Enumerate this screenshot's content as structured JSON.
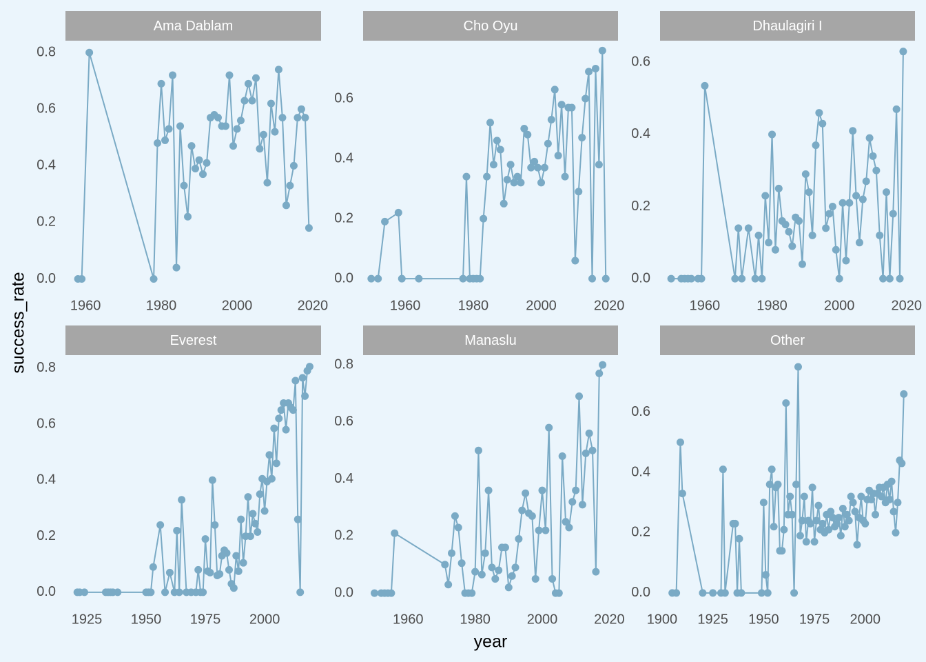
{
  "chart_data": {
    "type": "line",
    "x_label": "year",
    "y_label": "success_rate",
    "color": "#7aaac5",
    "strip_color": "#a6a6a6",
    "background": "#ebf5fc",
    "grid": false,
    "facets": [
      {
        "title": "Ama Dablam",
        "xlim": [
          1954.7,
          2022.2
        ],
        "ylim": [
          -0.05,
          0.842
        ],
        "xticks": [
          1960,
          1980,
          2000,
          2020
        ],
        "yticks": [
          {
            "value": 0,
            "label": "0.0"
          },
          {
            "value": 0.2,
            "label": "0.2"
          },
          {
            "value": 0.4,
            "label": "0.4"
          },
          {
            "value": 0.6,
            "label": "0.6"
          },
          {
            "value": 0.8,
            "label": "0.8"
          }
        ],
        "x": [
          1958,
          1959,
          1961,
          1978,
          1979,
          1980,
          1981,
          1982,
          1983,
          1984,
          1985,
          1986,
          1987,
          1988,
          1989,
          1990,
          1991,
          1992,
          1993,
          1994,
          1995,
          1996,
          1997,
          1998,
          1999,
          2000,
          2001,
          2002,
          2003,
          2004,
          2005,
          2006,
          2007,
          2008,
          2009,
          2010,
          2011,
          2012,
          2013,
          2014,
          2015,
          2016,
          2017,
          2018,
          2019
        ],
        "values": [
          0,
          0,
          0.8,
          0,
          0.48,
          0.69,
          0.49,
          0.53,
          0.72,
          0.04,
          0.54,
          0.33,
          0.22,
          0.47,
          0.39,
          0.42,
          0.37,
          0.41,
          0.57,
          0.58,
          0.57,
          0.54,
          0.54,
          0.72,
          0.47,
          0.53,
          0.56,
          0.63,
          0.69,
          0.63,
          0.71,
          0.46,
          0.51,
          0.34,
          0.62,
          0.52,
          0.74,
          0.57,
          0.26,
          0.33,
          0.4,
          0.57,
          0.6,
          0.57,
          0.18
        ]
      },
      {
        "title": "Cho Oyu",
        "xlim": [
          1947.6,
          2022.6
        ],
        "ylim": [
          -0.048,
          0.793
        ],
        "xticks": [
          1960,
          1980,
          2000,
          2020
        ],
        "yticks": [
          {
            "value": 0,
            "label": "0.0"
          },
          {
            "value": 0.2,
            "label": "0.2"
          },
          {
            "value": 0.4,
            "label": "0.4"
          },
          {
            "value": 0.6,
            "label": "0.6"
          }
        ],
        "x": [
          1950,
          1952,
          1954,
          1958,
          1959,
          1964,
          1977,
          1978,
          1979,
          1980,
          1981,
          1982,
          1983,
          1984,
          1985,
          1986,
          1987,
          1988,
          1989,
          1990,
          1991,
          1992,
          1993,
          1994,
          1995,
          1996,
          1997,
          1998,
          1999,
          2000,
          2001,
          2002,
          2003,
          2004,
          2005,
          2006,
          2007,
          2008,
          2009,
          2010,
          2011,
          2012,
          2013,
          2014,
          2015,
          2016,
          2017,
          2018,
          2019
        ],
        "values": [
          0,
          0,
          0.19,
          0.22,
          0,
          0,
          0,
          0.34,
          0,
          0,
          0,
          0,
          0.2,
          0.34,
          0.52,
          0.38,
          0.46,
          0.43,
          0.25,
          0.33,
          0.38,
          0.32,
          0.34,
          0.32,
          0.5,
          0.48,
          0.37,
          0.39,
          0.37,
          0.32,
          0.37,
          0.45,
          0.53,
          0.63,
          0.41,
          0.58,
          0.34,
          0.57,
          0.57,
          0.06,
          0.29,
          0.47,
          0.6,
          0.69,
          0,
          0.7,
          0.38,
          0.76,
          0
        ]
      },
      {
        "title": "Dhaulagiri I",
        "xlim": [
          1946.7,
          2022.5
        ],
        "ylim": [
          -0.04,
          0.66
        ],
        "xticks": [
          1960,
          1980,
          2000,
          2020
        ],
        "yticks": [
          {
            "value": 0,
            "label": "0.0"
          },
          {
            "value": 0.2,
            "label": "0.2"
          },
          {
            "value": 0.4,
            "label": "0.4"
          },
          {
            "value": 0.6,
            "label": "0.6"
          }
        ],
        "x": [
          1950,
          1953,
          1954,
          1955,
          1956,
          1958,
          1959,
          1960,
          1969,
          1970,
          1971,
          1973,
          1975,
          1976,
          1977,
          1978,
          1979,
          1980,
          1981,
          1982,
          1983,
          1984,
          1985,
          1986,
          1987,
          1988,
          1989,
          1990,
          1991,
          1992,
          1993,
          1994,
          1995,
          1996,
          1997,
          1998,
          1999,
          2000,
          2001,
          2002,
          2003,
          2004,
          2005,
          2006,
          2007,
          2008,
          2009,
          2010,
          2011,
          2012,
          2013,
          2014,
          2015,
          2016,
          2017,
          2018,
          2019
        ],
        "values": [
          0,
          0,
          0,
          0,
          0,
          0,
          0,
          0.535,
          0,
          0.14,
          0,
          0.14,
          0,
          0.12,
          0,
          0.23,
          0.1,
          0.4,
          0.08,
          0.25,
          0.16,
          0.15,
          0.13,
          0.09,
          0.17,
          0.16,
          0.04,
          0.29,
          0.24,
          0.12,
          0.37,
          0.46,
          0.43,
          0.14,
          0.18,
          0.2,
          0.08,
          0,
          0.21,
          0.05,
          0.21,
          0.41,
          0.23,
          0.1,
          0.22,
          0.27,
          0.39,
          0.34,
          0.3,
          0.12,
          0,
          0.24,
          0,
          0.18,
          0.47,
          0,
          0.63
        ]
      },
      {
        "title": "Everest",
        "xlim": [
          1916.0,
          2023.8
        ],
        "ylim": [
          -0.052,
          0.846
        ],
        "xticks": [
          1925,
          1950,
          1975,
          2000
        ],
        "yticks": [
          {
            "value": 0,
            "label": "0.0"
          },
          {
            "value": 0.2,
            "label": "0.2"
          },
          {
            "value": 0.4,
            "label": "0.4"
          },
          {
            "value": 0.6,
            "label": "0.6"
          },
          {
            "value": 0.8,
            "label": "0.8"
          }
        ],
        "x": [
          1921,
          1922,
          1924,
          1933,
          1934,
          1935,
          1936,
          1938,
          1950,
          1951,
          1952,
          1953,
          1956,
          1958,
          1960,
          1962,
          1963,
          1964,
          1965,
          1967,
          1969,
          1971,
          1972,
          1973,
          1974,
          1975,
          1976,
          1977,
          1978,
          1979,
          1980,
          1981,
          1982,
          1983,
          1984,
          1985,
          1986,
          1987,
          1988,
          1989,
          1990,
          1991,
          1992,
          1993,
          1994,
          1995,
          1996,
          1997,
          1998,
          1999,
          2000,
          2001,
          2002,
          2003,
          2004,
          2005,
          2006,
          2007,
          2008,
          2009,
          2010,
          2011,
          2012,
          2013,
          2014,
          2015,
          2016,
          2017,
          2018,
          2019
        ],
        "values": [
          0,
          0,
          0,
          0,
          0,
          0,
          0,
          0,
          0,
          0,
          0,
          0.09,
          0.24,
          0,
          0.07,
          0,
          0.22,
          0,
          0.33,
          0,
          0,
          0,
          0.08,
          0,
          0,
          0.19,
          0.075,
          0.07,
          0.4,
          0.24,
          0.06,
          0.065,
          0.13,
          0.15,
          0.14,
          0.08,
          0.03,
          0.015,
          0.13,
          0.075,
          0.26,
          0.105,
          0.2,
          0.34,
          0.2,
          0.28,
          0.245,
          0.215,
          0.35,
          0.405,
          0.29,
          0.395,
          0.49,
          0.405,
          0.585,
          0.46,
          0.62,
          0.65,
          0.675,
          0.58,
          0.675,
          0.66,
          0.65,
          0.755,
          0.26,
          0,
          0.765,
          0.7,
          0.79,
          0.805
        ]
      },
      {
        "title": "Manaslu",
        "xlim": [
          1946.6,
          2022.6
        ],
        "ylim": [
          -0.048,
          0.834
        ],
        "xticks": [
          1960,
          1980,
          2000,
          2020
        ],
        "yticks": [
          {
            "value": 0,
            "label": "0.0"
          },
          {
            "value": 0.2,
            "label": "0.2"
          },
          {
            "value": 0.4,
            "label": "0.4"
          },
          {
            "value": 0.6,
            "label": "0.6"
          },
          {
            "value": 0.8,
            "label": "0.8"
          }
        ],
        "x": [
          1950,
          1952,
          1953,
          1954,
          1955,
          1956,
          1971,
          1972,
          1973,
          1974,
          1975,
          1976,
          1977,
          1978,
          1979,
          1980,
          1981,
          1982,
          1983,
          1984,
          1985,
          1986,
          1987,
          1988,
          1989,
          1990,
          1991,
          1992,
          1993,
          1994,
          1995,
          1996,
          1997,
          1998,
          1999,
          2000,
          2001,
          2002,
          2003,
          2004,
          2005,
          2006,
          2007,
          2008,
          2009,
          2010,
          2011,
          2012,
          2013,
          2014,
          2015,
          2016,
          2017,
          2018
        ],
        "values": [
          0,
          0,
          0,
          0,
          0,
          0.21,
          0.1,
          0.03,
          0.14,
          0.27,
          0.23,
          0.105,
          0,
          0,
          0,
          0.075,
          0.5,
          0.065,
          0.14,
          0.36,
          0.09,
          0.05,
          0.08,
          0.16,
          0.16,
          0.02,
          0.06,
          0.09,
          0.19,
          0.29,
          0.35,
          0.28,
          0.27,
          0.05,
          0.22,
          0.36,
          0.22,
          0.58,
          0.05,
          0,
          0,
          0.48,
          0.25,
          0.23,
          0.32,
          0.36,
          0.69,
          0.31,
          0.49,
          0.56,
          0.5,
          0.075,
          0.77,
          0.8
        ]
      },
      {
        "title": "Other",
        "xlim": [
          1899.0,
          2024.5
        ],
        "ylim": [
          -0.046,
          0.789
        ],
        "xticks": [
          1900,
          1925,
          1950,
          1975,
          2000
        ],
        "yticks": [
          {
            "value": 0,
            "label": "0.0"
          },
          {
            "value": 0.2,
            "label": "0.2"
          },
          {
            "value": 0.4,
            "label": "0.4"
          },
          {
            "value": 0.6,
            "label": "0.6"
          }
        ],
        "x": [
          1905,
          1907,
          1909,
          1910,
          1920,
          1925,
          1929,
          1930,
          1931,
          1935,
          1936,
          1937,
          1938,
          1939,
          1949,
          1950,
          1951,
          1952,
          1953,
          1954,
          1955,
          1956,
          1957,
          1958,
          1959,
          1960,
          1961,
          1962,
          1963,
          1964,
          1965,
          1966,
          1967,
          1968,
          1969,
          1970,
          1971,
          1972,
          1973,
          1974,
          1975,
          1976,
          1977,
          1978,
          1979,
          1980,
          1981,
          1982,
          1983,
          1984,
          1985,
          1986,
          1987,
          1988,
          1989,
          1990,
          1991,
          1992,
          1993,
          1994,
          1995,
          1996,
          1997,
          1998,
          1999,
          2000,
          2001,
          2002,
          2003,
          2004,
          2005,
          2006,
          2007,
          2008,
          2009,
          2010,
          2011,
          2012,
          2013,
          2014,
          2015,
          2016,
          2017,
          2018,
          2019
        ],
        "values": [
          0,
          0,
          0.5,
          0.33,
          0,
          0,
          0,
          0.41,
          0,
          0.23,
          0.23,
          0,
          0.18,
          0,
          0,
          0.3,
          0.06,
          0,
          0.36,
          0.41,
          0.22,
          0.35,
          0.36,
          0.14,
          0.14,
          0.21,
          0.63,
          0.26,
          0.32,
          0.26,
          0,
          0.36,
          0.75,
          0.19,
          0.24,
          0.32,
          0.17,
          0.24,
          0.23,
          0.35,
          0.17,
          0.24,
          0.29,
          0.21,
          0.23,
          0.2,
          0.26,
          0.21,
          0.27,
          0.25,
          0.22,
          0.23,
          0.25,
          0.19,
          0.28,
          0.22,
          0.26,
          0.24,
          0.32,
          0.3,
          0.27,
          0.16,
          0.25,
          0.32,
          0.24,
          0.23,
          0.31,
          0.34,
          0.31,
          0.33,
          0.26,
          0.33,
          0.35,
          0.32,
          0.35,
          0.3,
          0.36,
          0.31,
          0.37,
          0.27,
          0.2,
          0.3,
          0.44,
          0.43,
          0.66
        ]
      }
    ]
  }
}
